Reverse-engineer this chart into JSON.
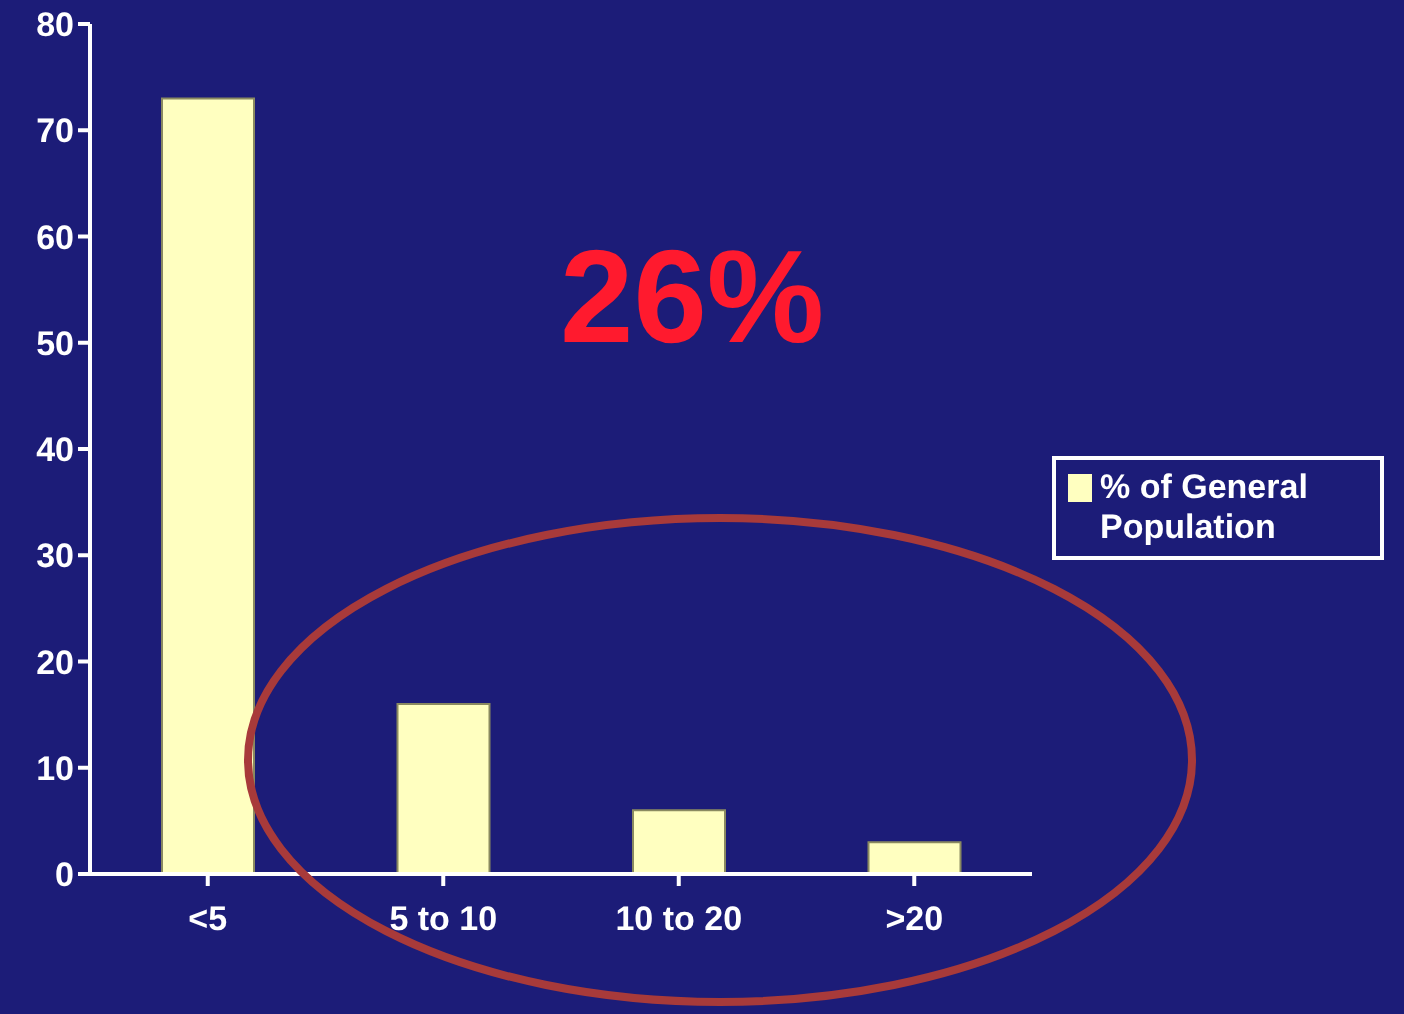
{
  "chart_data": {
    "type": "bar",
    "categories": [
      "<5",
      "5 to 10",
      "10 to 20",
      ">20"
    ],
    "series": [
      {
        "name": "% of General Population",
        "color": "#ffffc0",
        "values": [
          73,
          16,
          6,
          3
        ]
      }
    ],
    "ylim": [
      0,
      80
    ],
    "yticks": [
      0,
      10,
      20,
      30,
      40,
      50,
      60,
      70,
      80
    ],
    "legend": "right",
    "annotations": [
      "26%"
    ]
  }
}
